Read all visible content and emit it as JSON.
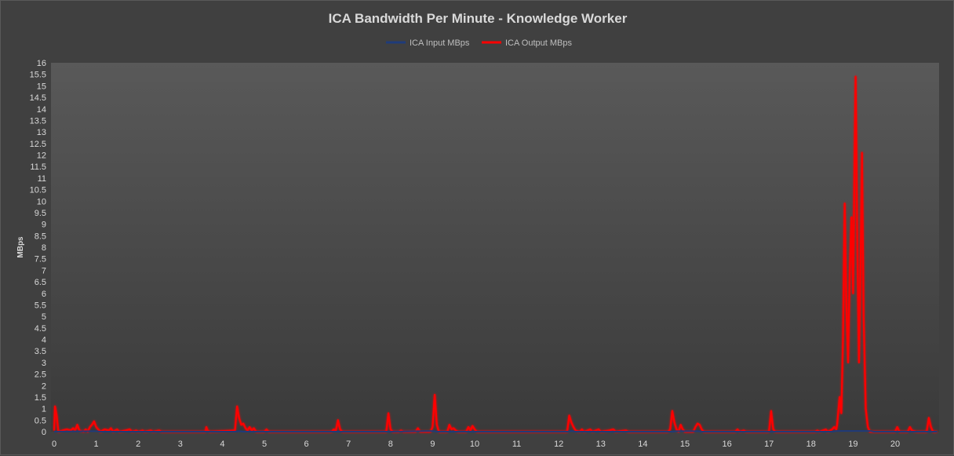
{
  "colors": {
    "background": "#404040",
    "plot_top": "#595959",
    "plot_bottom": "#3a3a3a",
    "input_series": "#1f3b7a",
    "output_series": "#ff0000"
  },
  "chart_data": {
    "type": "line",
    "title": "ICA Bandwidth Per Minute - Knowledge Worker",
    "xlabel": "",
    "ylabel": "MBps",
    "xlim": [
      0,
      21
    ],
    "ylim": [
      0,
      16
    ],
    "x_ticks": [
      "0",
      "1",
      "2",
      "3",
      "4",
      "5",
      "6",
      "7",
      "8",
      "9",
      "10",
      "11",
      "12",
      "13",
      "14",
      "15",
      "16",
      "17",
      "18",
      "19",
      "20"
    ],
    "y_ticks": [
      "0",
      "0.5",
      "1",
      "1.5",
      "2",
      "2.5",
      "3",
      "3.5",
      "4",
      "4.5",
      "5",
      "5.5",
      "6",
      "6.5",
      "7",
      "7.5",
      "8",
      "8.5",
      "9",
      "9.5",
      "10",
      "10.5",
      "11",
      "11.5",
      "12",
      "12.5",
      "13",
      "13.5",
      "14",
      "14.5",
      "15",
      "15.5",
      "16"
    ],
    "legend_position": "top",
    "grid": false,
    "series": [
      {
        "name": "ICA Input MBps",
        "color": "#1f3b7a",
        "points": [
          [
            0,
            0
          ],
          [
            0.9,
            0.02
          ],
          [
            1.0,
            0.02
          ],
          [
            1.1,
            0
          ],
          [
            4.3,
            0
          ],
          [
            4.4,
            0.02
          ],
          [
            4.5,
            0
          ],
          [
            8.0,
            0
          ],
          [
            9.0,
            0.03
          ],
          [
            9.1,
            0
          ],
          [
            12.2,
            0
          ],
          [
            12.3,
            0.03
          ],
          [
            12.4,
            0
          ],
          [
            14.7,
            0
          ],
          [
            14.8,
            0.02
          ],
          [
            15.3,
            0.02
          ],
          [
            15.4,
            0
          ],
          [
            18.5,
            0
          ],
          [
            18.6,
            0.03
          ],
          [
            19.4,
            0.03
          ],
          [
            19.5,
            0
          ],
          [
            21,
            0
          ]
        ]
      },
      {
        "name": "ICA Output MBps",
        "color": "#ff0000",
        "points": [
          [
            0,
            0.05
          ],
          [
            0.02,
            1.1
          ],
          [
            0.06,
            0.7
          ],
          [
            0.1,
            0
          ],
          [
            0.2,
            0.05
          ],
          [
            0.3,
            0.1
          ],
          [
            0.4,
            0.05
          ],
          [
            0.45,
            0.15
          ],
          [
            0.5,
            0.05
          ],
          [
            0.55,
            0.3
          ],
          [
            0.6,
            0.05
          ],
          [
            0.7,
            0
          ],
          [
            0.75,
            0.1
          ],
          [
            0.8,
            0
          ],
          [
            0.85,
            0.2
          ],
          [
            0.9,
            0.3
          ],
          [
            0.95,
            0.45
          ],
          [
            1.0,
            0.2
          ],
          [
            1.05,
            0.1
          ],
          [
            1.1,
            0
          ],
          [
            1.2,
            0.1
          ],
          [
            1.3,
            0.05
          ],
          [
            1.35,
            0.15
          ],
          [
            1.4,
            0
          ],
          [
            1.5,
            0.1
          ],
          [
            1.55,
            0
          ],
          [
            1.7,
            0.05
          ],
          [
            1.8,
            0.1
          ],
          [
            1.85,
            0
          ],
          [
            1.95,
            0.05
          ],
          [
            2.0,
            0
          ],
          [
            2.1,
            0.05
          ],
          [
            2.15,
            0
          ],
          [
            2.3,
            0.05
          ],
          [
            2.35,
            0
          ],
          [
            2.5,
            0.05
          ],
          [
            2.55,
            0
          ],
          [
            3.6,
            0
          ],
          [
            3.62,
            0.2
          ],
          [
            3.65,
            0.05
          ],
          [
            3.7,
            0
          ],
          [
            4.3,
            0.05
          ],
          [
            4.35,
            1.1
          ],
          [
            4.4,
            0.6
          ],
          [
            4.45,
            0.3
          ],
          [
            4.5,
            0.35
          ],
          [
            4.55,
            0.15
          ],
          [
            4.6,
            0.05
          ],
          [
            4.65,
            0.2
          ],
          [
            4.7,
            0.05
          ],
          [
            4.75,
            0.15
          ],
          [
            4.8,
            0
          ],
          [
            5.0,
            0
          ],
          [
            5.05,
            0.1
          ],
          [
            5.1,
            0
          ],
          [
            6.6,
            0
          ],
          [
            6.65,
            0.1
          ],
          [
            6.7,
            0.05
          ],
          [
            6.75,
            0.5
          ],
          [
            6.8,
            0.1
          ],
          [
            6.85,
            0
          ],
          [
            7.9,
            0
          ],
          [
            7.95,
            0.8
          ],
          [
            8.0,
            0.1
          ],
          [
            8.05,
            0
          ],
          [
            8.2,
            0
          ],
          [
            8.25,
            0.05
          ],
          [
            8.3,
            0
          ],
          [
            8.6,
            0
          ],
          [
            8.65,
            0.15
          ],
          [
            8.7,
            0
          ],
          [
            8.95,
            0
          ],
          [
            9.0,
            0.2
          ],
          [
            9.05,
            1.6
          ],
          [
            9.1,
            0.3
          ],
          [
            9.15,
            0
          ],
          [
            9.35,
            0
          ],
          [
            9.4,
            0.3
          ],
          [
            9.45,
            0.1
          ],
          [
            9.5,
            0.15
          ],
          [
            9.55,
            0.05
          ],
          [
            9.6,
            0
          ],
          [
            9.8,
            0
          ],
          [
            9.85,
            0.2
          ],
          [
            9.9,
            0.05
          ],
          [
            9.95,
            0.25
          ],
          [
            10.0,
            0.1
          ],
          [
            10.05,
            0
          ],
          [
            12.2,
            0
          ],
          [
            12.25,
            0.7
          ],
          [
            12.3,
            0.4
          ],
          [
            12.35,
            0.2
          ],
          [
            12.4,
            0.05
          ],
          [
            12.5,
            0
          ],
          [
            12.55,
            0.1
          ],
          [
            12.6,
            0
          ],
          [
            12.75,
            0.1
          ],
          [
            12.8,
            0
          ],
          [
            12.95,
            0.1
          ],
          [
            13.0,
            0
          ],
          [
            13.2,
            0.05
          ],
          [
            13.3,
            0.1
          ],
          [
            13.35,
            0
          ],
          [
            13.6,
            0.05
          ],
          [
            13.65,
            0
          ],
          [
            14.6,
            0
          ],
          [
            14.65,
            0.1
          ],
          [
            14.7,
            0.9
          ],
          [
            14.75,
            0.4
          ],
          [
            14.8,
            0.1
          ],
          [
            14.85,
            0
          ],
          [
            14.9,
            0.3
          ],
          [
            14.95,
            0.1
          ],
          [
            15.0,
            0
          ],
          [
            15.2,
            0
          ],
          [
            15.25,
            0.2
          ],
          [
            15.3,
            0.35
          ],
          [
            15.35,
            0.3
          ],
          [
            15.4,
            0.1
          ],
          [
            15.45,
            0
          ],
          [
            16.2,
            0
          ],
          [
            16.25,
            0.1
          ],
          [
            16.3,
            0
          ],
          [
            16.4,
            0.05
          ],
          [
            16.45,
            0
          ],
          [
            17.0,
            0
          ],
          [
            17.05,
            0.9
          ],
          [
            17.1,
            0.1
          ],
          [
            17.15,
            0
          ],
          [
            18.1,
            0
          ],
          [
            18.15,
            0.05
          ],
          [
            18.2,
            0
          ],
          [
            18.35,
            0.1
          ],
          [
            18.4,
            0
          ],
          [
            18.5,
            0.1
          ],
          [
            18.55,
            0.2
          ],
          [
            18.6,
            0.1
          ],
          [
            18.62,
            0.3
          ],
          [
            18.68,
            1.5
          ],
          [
            18.72,
            0.8
          ],
          [
            18.76,
            4.0
          ],
          [
            18.8,
            9.9
          ],
          [
            18.84,
            5.5
          ],
          [
            18.88,
            3.0
          ],
          [
            18.92,
            7.0
          ],
          [
            18.96,
            9.3
          ],
          [
            19.0,
            6.0
          ],
          [
            19.03,
            11.0
          ],
          [
            19.06,
            15.4
          ],
          [
            19.1,
            8.0
          ],
          [
            19.14,
            3.0
          ],
          [
            19.18,
            7.5
          ],
          [
            19.21,
            12.1
          ],
          [
            19.25,
            5.0
          ],
          [
            19.3,
            1.0
          ],
          [
            19.35,
            0.2
          ],
          [
            19.4,
            0
          ],
          [
            20.0,
            0
          ],
          [
            20.05,
            0.2
          ],
          [
            20.1,
            0
          ],
          [
            20.3,
            0
          ],
          [
            20.35,
            0.2
          ],
          [
            20.4,
            0.05
          ],
          [
            20.5,
            0
          ],
          [
            20.75,
            0
          ],
          [
            20.8,
            0.6
          ],
          [
            20.85,
            0.2
          ],
          [
            20.9,
            0
          ],
          [
            21,
            0
          ]
        ]
      }
    ]
  }
}
